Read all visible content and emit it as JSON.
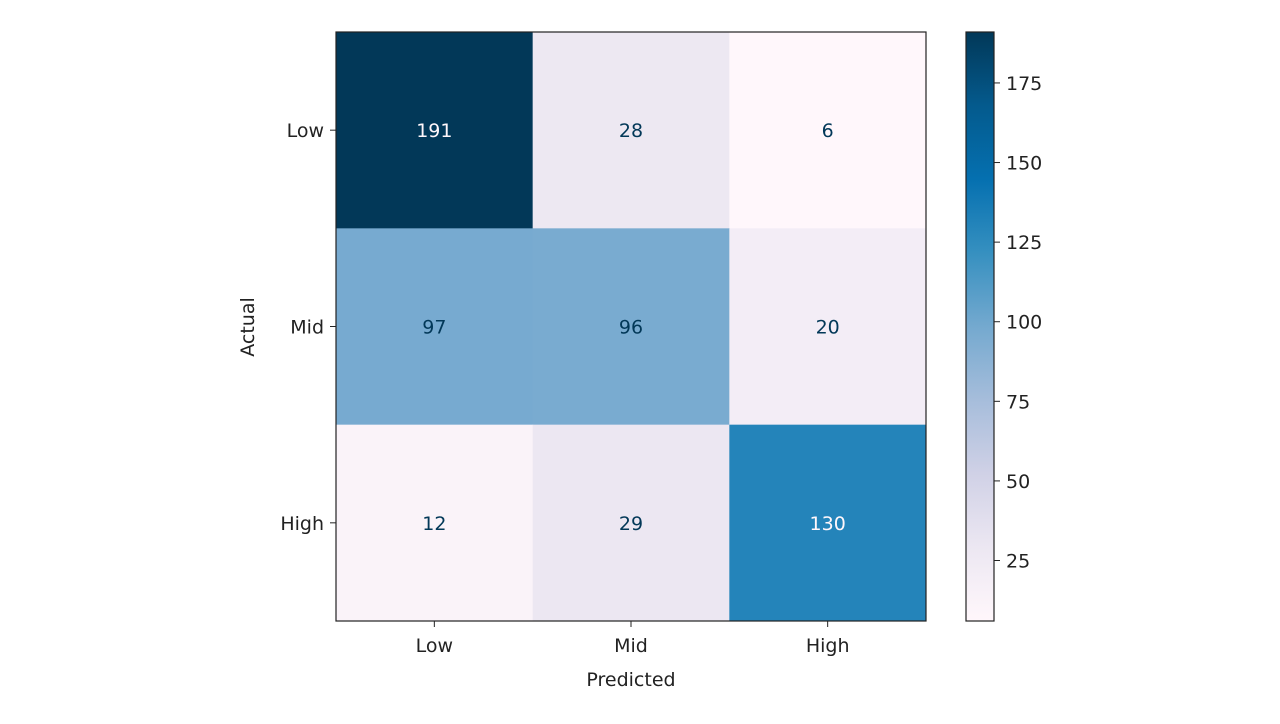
{
  "chart_data": {
    "type": "heatmap",
    "title": "",
    "xlabel": "Predicted",
    "ylabel": "Actual",
    "x_categories": [
      "Low",
      "Mid",
      "High"
    ],
    "y_categories": [
      "Low",
      "Mid",
      "High"
    ],
    "values": [
      [
        191,
        28,
        6
      ],
      [
        97,
        96,
        20
      ],
      [
        12,
        29,
        130
      ]
    ],
    "colormap": "PuBu",
    "colormap_stops": [
      "#fff7fb",
      "#ece7f2",
      "#d0d1e6",
      "#a6bddb",
      "#74a9cf",
      "#3690c0",
      "#0570b0",
      "#045a8d",
      "#023858"
    ],
    "color_range": [
      6,
      191
    ],
    "colorbar_ticks": [
      25,
      50,
      75,
      100,
      125,
      150,
      175
    ],
    "colorbar_tick_labels": [
      "25",
      "50",
      "75",
      "100",
      "125",
      "150",
      "175"
    ],
    "grid": false
  }
}
